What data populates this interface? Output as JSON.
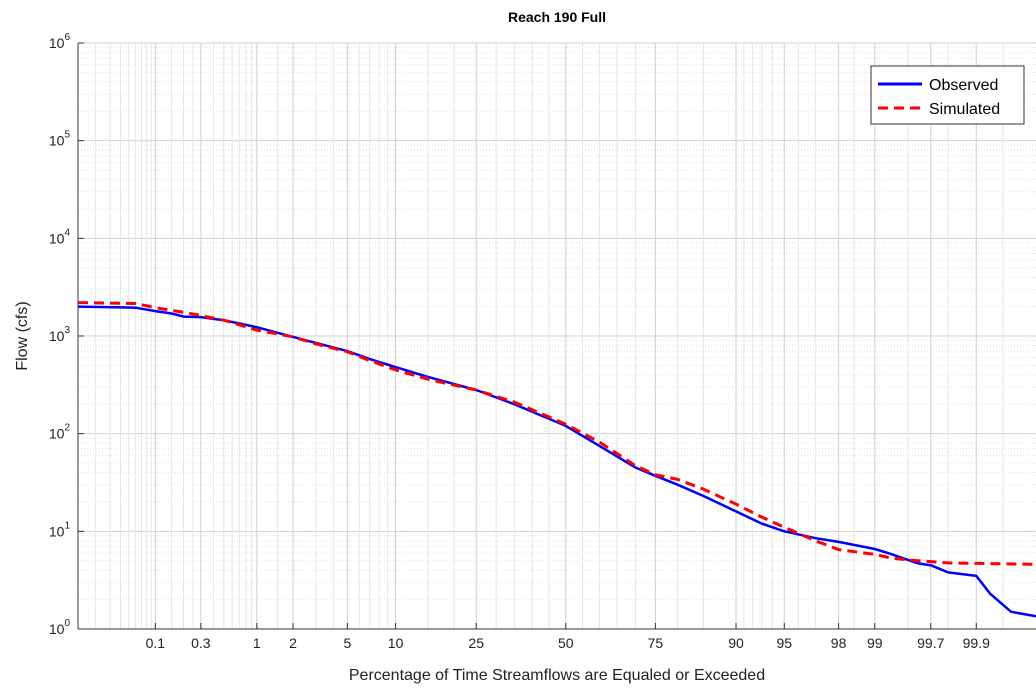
{
  "chart_data": {
    "type": "line",
    "title": "Reach 190 Full",
    "xlabel": "Percentage of Time Streamflows are Equaled or Exceeded",
    "ylabel": "Flow (cfs)",
    "x_scale": "normal-probability",
    "y_scale": "log",
    "xlim": [
      0.012,
      99.98
    ],
    "ylim": [
      1,
      1000000
    ],
    "x_ticks": [
      0.1,
      0.3,
      1,
      2,
      5,
      10,
      25,
      50,
      75,
      90,
      95,
      98,
      99,
      99.7,
      99.9
    ],
    "x_tick_labels": [
      "0.1",
      "0.3",
      "1",
      "2",
      "5",
      "10",
      "25",
      "50",
      "75",
      "90",
      "95",
      "98",
      "99",
      "99.7",
      "99.9"
    ],
    "y_ticks": [
      {
        "base": "10",
        "exp": "0",
        "value": 1
      },
      {
        "base": "10",
        "exp": "1",
        "value": 10
      },
      {
        "base": "10",
        "exp": "2",
        "value": 100
      },
      {
        "base": "10",
        "exp": "3",
        "value": 1000
      },
      {
        "base": "10",
        "exp": "4",
        "value": 10000
      },
      {
        "base": "10",
        "exp": "5",
        "value": 100000
      },
      {
        "base": "10",
        "exp": "6",
        "value": 1000000
      }
    ],
    "grid": true,
    "legend_position": "top-right",
    "series": [
      {
        "name": "Observed",
        "color": "#0000ff",
        "style": "solid",
        "points": [
          [
            0.012,
            2000
          ],
          [
            0.06,
            1950
          ],
          [
            0.1,
            1800
          ],
          [
            0.15,
            1700
          ],
          [
            0.2,
            1580
          ],
          [
            0.3,
            1560
          ],
          [
            0.5,
            1450
          ],
          [
            1,
            1230
          ],
          [
            2,
            980
          ],
          [
            3,
            850
          ],
          [
            5,
            700
          ],
          [
            7,
            580
          ],
          [
            10,
            480
          ],
          [
            15,
            380
          ],
          [
            25,
            280
          ],
          [
            35,
            200
          ],
          [
            50,
            120
          ],
          [
            60,
            75
          ],
          [
            70,
            45
          ],
          [
            75,
            37
          ],
          [
            80,
            30
          ],
          [
            85,
            23
          ],
          [
            90,
            16
          ],
          [
            93,
            12
          ],
          [
            95,
            10
          ],
          [
            97,
            8.5
          ],
          [
            98,
            7.8
          ],
          [
            99,
            6.6
          ],
          [
            99.3,
            5.8
          ],
          [
            99.6,
            4.7
          ],
          [
            99.7,
            4.5
          ],
          [
            99.8,
            3.8
          ],
          [
            99.9,
            3.5
          ],
          [
            99.93,
            2.3
          ],
          [
            99.96,
            1.5
          ],
          [
            99.98,
            1.35
          ]
        ]
      },
      {
        "name": "Simulated",
        "color": "#ff0000",
        "style": "dashed",
        "points": [
          [
            0.012,
            2200
          ],
          [
            0.06,
            2150
          ],
          [
            0.1,
            1950
          ],
          [
            0.2,
            1750
          ],
          [
            0.3,
            1620
          ],
          [
            0.5,
            1450
          ],
          [
            1,
            1150
          ],
          [
            2,
            980
          ],
          [
            3,
            830
          ],
          [
            5,
            690
          ],
          [
            7,
            560
          ],
          [
            10,
            450
          ],
          [
            15,
            360
          ],
          [
            25,
            280
          ],
          [
            35,
            210
          ],
          [
            50,
            125
          ],
          [
            60,
            82
          ],
          [
            70,
            47
          ],
          [
            75,
            38
          ],
          [
            80,
            34
          ],
          [
            85,
            27
          ],
          [
            90,
            19
          ],
          [
            93,
            14
          ],
          [
            95,
            11
          ],
          [
            97,
            8
          ],
          [
            98,
            6.5
          ],
          [
            99,
            5.8
          ],
          [
            99.3,
            5.3
          ],
          [
            99.6,
            5.0
          ],
          [
            99.7,
            4.9
          ],
          [
            99.8,
            4.75
          ],
          [
            99.9,
            4.7
          ],
          [
            99.98,
            4.6
          ]
        ]
      }
    ]
  }
}
